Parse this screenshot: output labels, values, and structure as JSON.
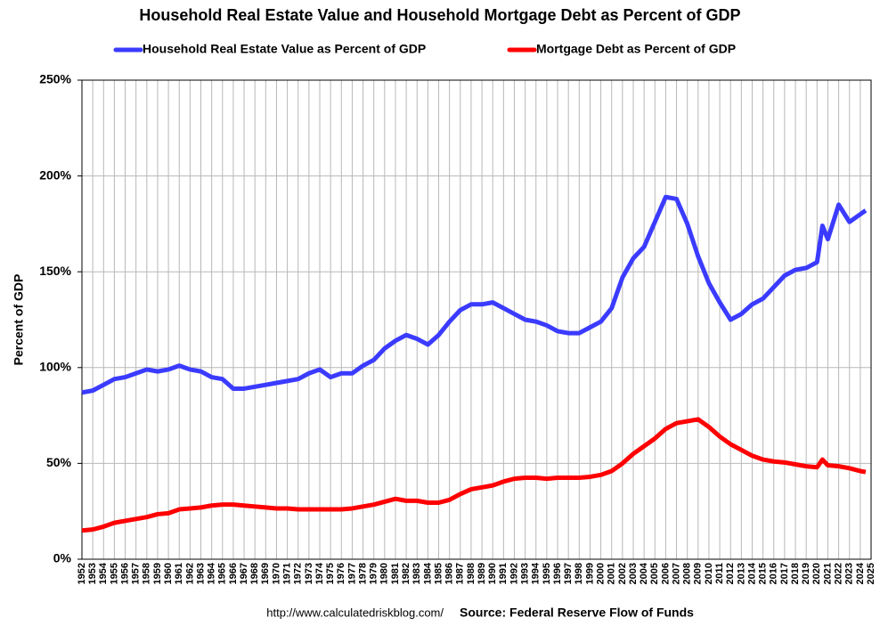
{
  "chart_data": {
    "type": "line",
    "title": "Household Real Estate Value and Household Mortgage Debt as Percent of GDP",
    "y_label": "Percent of GDP",
    "source_url": "http://www.calculatedriskblog.com/",
    "source": "Source: Federal Reserve Flow of Funds",
    "x": [
      1952,
      1953,
      1954,
      1955,
      1956,
      1957,
      1958,
      1959,
      1960,
      1961,
      1962,
      1963,
      1964,
      1965,
      1966,
      1967,
      1968,
      1969,
      1970,
      1971,
      1972,
      1973,
      1974,
      1975,
      1976,
      1977,
      1978,
      1979,
      1980,
      1981,
      1982,
      1983,
      1984,
      1985,
      1986,
      1987,
      1988,
      1989,
      1990,
      1991,
      1992,
      1993,
      1994,
      1995,
      1996,
      1997,
      1998,
      1999,
      2000,
      2001,
      2002,
      2003,
      2004,
      2005,
      2006,
      2007,
      2008,
      2009,
      2010,
      2011,
      2012,
      2013,
      2014,
      2015,
      2016,
      2017,
      2018,
      2019,
      2020,
      2020.5,
      2021,
      2022,
      2023,
      2024,
      2024.5
    ],
    "series": [
      {
        "name": "Household Real Estate Value as Percent of GDP",
        "color": "#3b3bff",
        "values": [
          87,
          88,
          91,
          94,
          95,
          97,
          99,
          98,
          99,
          101,
          99,
          98,
          95,
          94,
          89,
          89,
          90,
          91,
          92,
          93,
          94,
          97,
          99,
          95,
          97,
          97,
          101,
          104,
          110,
          114,
          117,
          115,
          112,
          117,
          124,
          130,
          133,
          133,
          134,
          131,
          128,
          125,
          124,
          122,
          119,
          118,
          118,
          121,
          124,
          131,
          147,
          157,
          163,
          176,
          189,
          188,
          175,
          158,
          144,
          134,
          125,
          128,
          133,
          136,
          142,
          148,
          151,
          152,
          155,
          174,
          167,
          185,
          176,
          180,
          182
        ]
      },
      {
        "name": "Mortgage Debt as Percent of GDP",
        "color": "#ff0000",
        "values": [
          15,
          15.5,
          17,
          19,
          20,
          21,
          22,
          23.5,
          24,
          26,
          26.5,
          27,
          28,
          28.5,
          28.5,
          28,
          27.5,
          27,
          26.5,
          26.5,
          26,
          26,
          26,
          26,
          26,
          26.5,
          27.5,
          28.5,
          30,
          31.5,
          30.5,
          30.5,
          29.5,
          29.5,
          31,
          34,
          36.5,
          37.5,
          38.5,
          40.5,
          42,
          42.5,
          42.5,
          42,
          42.5,
          42.5,
          42.5,
          43,
          44,
          46,
          50,
          55,
          59,
          63,
          68,
          71,
          72,
          73,
          69,
          64,
          60,
          57,
          54,
          52,
          51,
          50.5,
          49.5,
          48.5,
          48,
          52,
          49,
          48.5,
          47.5,
          46,
          45.5
        ]
      }
    ],
    "xlim": [
      1952,
      2025
    ],
    "xticks": [
      1952,
      1953,
      1954,
      1955,
      1956,
      1957,
      1958,
      1959,
      1960,
      1961,
      1962,
      1963,
      1964,
      1965,
      1966,
      1967,
      1968,
      1969,
      1970,
      1971,
      1972,
      1973,
      1974,
      1975,
      1976,
      1977,
      1978,
      1979,
      1980,
      1981,
      1982,
      1983,
      1984,
      1985,
      1986,
      1987,
      1988,
      1989,
      1990,
      1991,
      1992,
      1993,
      1994,
      1995,
      1996,
      1997,
      1998,
      1999,
      2000,
      2001,
      2002,
      2003,
      2004,
      2005,
      2006,
      2007,
      2008,
      2009,
      2010,
      2011,
      2012,
      2013,
      2014,
      2015,
      2016,
      2017,
      2018,
      2019,
      2020,
      2021,
      2022,
      2023,
      2024,
      2025
    ],
    "ylim": [
      0,
      250
    ],
    "yticks": [
      {
        "value": 0,
        "label": "0%"
      },
      {
        "value": 50,
        "label": "50%"
      },
      {
        "value": 100,
        "label": "100%"
      },
      {
        "value": 150,
        "label": "150%"
      },
      {
        "value": 200,
        "label": "200%"
      },
      {
        "value": 250,
        "label": "250%"
      }
    ],
    "grid": true
  }
}
